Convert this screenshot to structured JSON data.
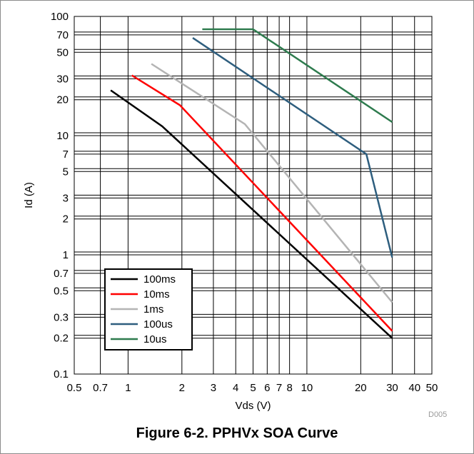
{
  "figure": {
    "code": "D005",
    "caption": "Figure 6-2. PPHVx SOA Curve"
  },
  "chart_data": {
    "type": "line",
    "xlabel": "Vds (V)",
    "ylabel": "Id (A)",
    "xscale": "log",
    "yscale": "log",
    "xlim": [
      0.5,
      50
    ],
    "ylim": [
      0.1,
      100
    ],
    "grid": true,
    "legend_position": "bottom-left",
    "xticks": [
      0.5,
      0.7,
      1,
      2,
      3,
      4,
      5,
      6,
      7,
      8,
      10,
      20,
      30,
      40,
      50
    ],
    "xtick_labels": [
      "0.5",
      "0.7",
      "1",
      "2",
      "3",
      "4",
      "5",
      "6",
      "7",
      "8",
      "10",
      "20",
      "30",
      "40",
      "50"
    ],
    "yticks": [
      0.1,
      0.2,
      0.3,
      0.5,
      0.7,
      1,
      2,
      3,
      5,
      7,
      10,
      20,
      30,
      50,
      70,
      100
    ],
    "ytick_labels": [
      "0.1",
      "0.2",
      "0.3",
      "0.5",
      "0.7",
      "1",
      "2",
      "3",
      "5",
      "7",
      "10",
      "20",
      "30",
      "50",
      "70",
      "100"
    ],
    "series": [
      {
        "name": "100ms",
        "color": "#000000",
        "points": [
          [
            0.8,
            24
          ],
          [
            1.55,
            12
          ],
          [
            30,
            0.2
          ]
        ]
      },
      {
        "name": "10ms",
        "color": "#ff0000",
        "points": [
          [
            1.05,
            32
          ],
          [
            1.95,
            18
          ],
          [
            30,
            0.23
          ]
        ]
      },
      {
        "name": "1ms",
        "color": "#b4b4b4",
        "points": [
          [
            1.35,
            40
          ],
          [
            4.5,
            12.5
          ],
          [
            30,
            0.4
          ]
        ]
      },
      {
        "name": "100us",
        "color": "#2e5e7e",
        "points": [
          [
            2.3,
            66
          ],
          [
            21.5,
            7
          ],
          [
            30,
            0.95
          ]
        ]
      },
      {
        "name": "10us",
        "color": "#2e7b4e",
        "points": [
          [
            2.6,
            78
          ],
          [
            5,
            78
          ],
          [
            30,
            13
          ]
        ]
      }
    ]
  }
}
